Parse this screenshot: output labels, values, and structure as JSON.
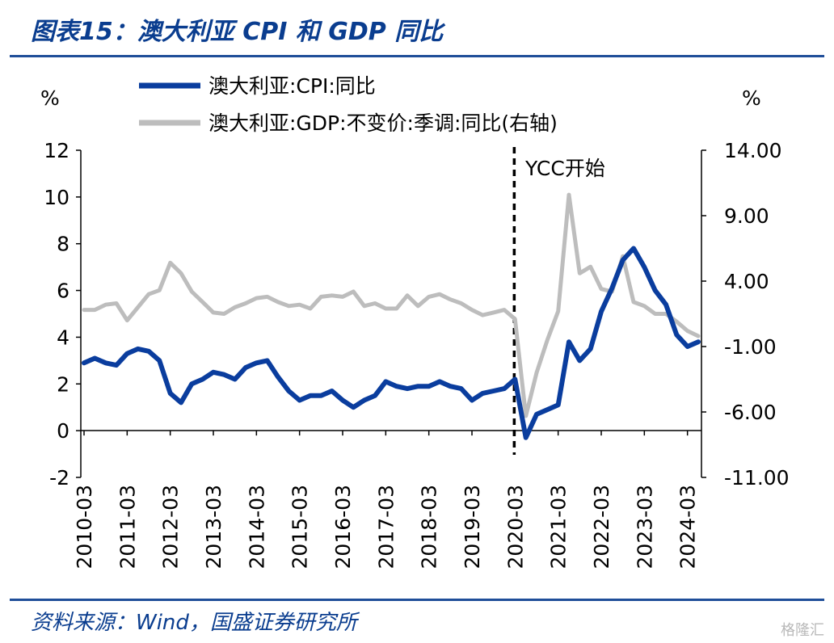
{
  "title": "图表15：澳大利亚 CPI 和 GDP 同比",
  "source": "资料来源：Wind，国盛证券研究所",
  "watermark": "格隆汇",
  "chart_data": {
    "type": "line",
    "left_axis_unit": "%",
    "right_axis_unit": "%",
    "ylim_left": [
      -2,
      12
    ],
    "ylim_right": [
      -11,
      14
    ],
    "left_ticks": [
      "12",
      "10",
      "8",
      "6",
      "4",
      "2",
      "0",
      "-2"
    ],
    "right_ticks": [
      "14.00",
      "9.00",
      "4.00",
      "-1.00",
      "-6.00",
      "-11.00"
    ],
    "x_labels": [
      "2010-03",
      "2011-03",
      "2012-03",
      "2013-03",
      "2014-03",
      "2015-03",
      "2016-03",
      "2017-03",
      "2018-03",
      "2019-03",
      "2020-03",
      "2021-03",
      "2022-03",
      "2023-03",
      "2024-03"
    ],
    "x": [
      "2010-03",
      "2010-06",
      "2010-09",
      "2010-12",
      "2011-03",
      "2011-06",
      "2011-09",
      "2011-12",
      "2012-03",
      "2012-06",
      "2012-09",
      "2012-12",
      "2013-03",
      "2013-06",
      "2013-09",
      "2013-12",
      "2014-03",
      "2014-06",
      "2014-09",
      "2014-12",
      "2015-03",
      "2015-06",
      "2015-09",
      "2015-12",
      "2016-03",
      "2016-06",
      "2016-09",
      "2016-12",
      "2017-03",
      "2017-06",
      "2017-09",
      "2017-12",
      "2018-03",
      "2018-06",
      "2018-09",
      "2018-12",
      "2019-03",
      "2019-06",
      "2019-09",
      "2019-12",
      "2020-03",
      "2020-06",
      "2020-09",
      "2020-12",
      "2021-03",
      "2021-06",
      "2021-09",
      "2021-12",
      "2022-03",
      "2022-06",
      "2022-09",
      "2022-12",
      "2023-03",
      "2023-06",
      "2023-09",
      "2023-12",
      "2024-03",
      "2024-06"
    ],
    "series": [
      {
        "name": "澳大利亚:CPI:同比",
        "axis": "left",
        "color": "#0a3d9e",
        "values": [
          2.9,
          3.1,
          2.9,
          2.8,
          3.3,
          3.5,
          3.4,
          3.0,
          1.6,
          1.2,
          2.0,
          2.2,
          2.5,
          2.4,
          2.2,
          2.7,
          2.9,
          3.0,
          2.3,
          1.7,
          1.3,
          1.5,
          1.5,
          1.7,
          1.3,
          1.0,
          1.3,
          1.5,
          2.1,
          1.9,
          1.8,
          1.9,
          1.9,
          2.1,
          1.9,
          1.8,
          1.3,
          1.6,
          1.7,
          1.8,
          2.2,
          -0.3,
          0.7,
          0.9,
          1.1,
          3.8,
          3.0,
          3.5,
          5.1,
          6.1,
          7.3,
          7.8,
          7.0,
          6.0,
          5.4,
          4.1,
          3.6,
          3.8
        ]
      },
      {
        "name": "澳大利亚:GDP:不变价:季调:同比(右轴)",
        "axis": "right",
        "color": "#bdbdbd",
        "values": [
          1.8,
          1.8,
          2.2,
          2.3,
          1.0,
          2.0,
          3.0,
          3.3,
          5.4,
          4.6,
          3.2,
          2.4,
          1.6,
          1.5,
          2.0,
          2.3,
          2.7,
          2.8,
          2.4,
          2.1,
          2.2,
          1.9,
          2.8,
          2.9,
          2.8,
          3.2,
          2.1,
          2.3,
          1.9,
          1.9,
          2.9,
          2.1,
          2.8,
          3.0,
          2.6,
          2.3,
          1.8,
          1.4,
          1.6,
          1.8,
          1.1,
          -6.3,
          -3.0,
          -0.5,
          1.7,
          10.6,
          4.6,
          5.1,
          3.4,
          3.2,
          5.9,
          2.4,
          2.1,
          1.5,
          1.5,
          0.9,
          0.2,
          -0.2
        ]
      }
    ],
    "annotation": {
      "text": "YCC开始",
      "x": "2020-03"
    },
    "grid": false,
    "legend_position": "top-left"
  }
}
